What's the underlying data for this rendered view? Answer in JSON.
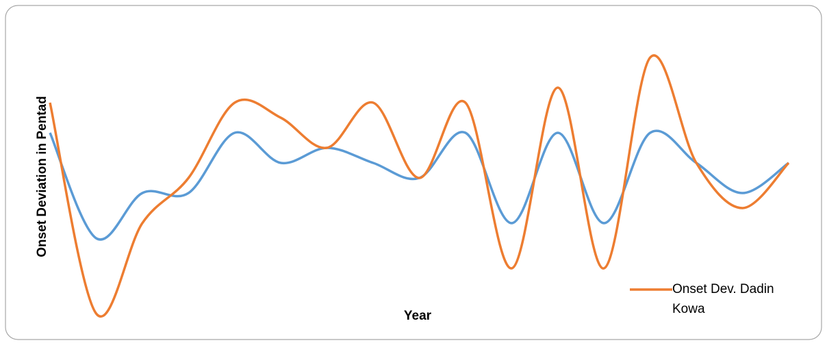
{
  "chart_data": {
    "type": "line",
    "x_label": "Year",
    "y_label": "Onset Deviation in Pentad",
    "categories": [
      null,
      null,
      null,
      null,
      null,
      null,
      null,
      null,
      null,
      null,
      null,
      null,
      null,
      null,
      null,
      null,
      null
    ],
    "series": [
      {
        "color": "#5b9bd5",
        "values": [
          3,
          -4,
          -1,
          -1,
          3,
          1,
          2,
          1,
          0,
          3,
          -3,
          3,
          -3,
          3,
          1,
          -1,
          1
        ]
      },
      {
        "name": "Onset Dev. Dadin Kowa",
        "color": "#ed7d31",
        "values": [
          5,
          -9,
          -3,
          0,
          5,
          4,
          2,
          5,
          0,
          5,
          -6,
          6,
          -6,
          8,
          1,
          -2,
          1
        ]
      }
    ],
    "ylim": [
      -10,
      10
    ],
    "legend": "bottom-right"
  }
}
